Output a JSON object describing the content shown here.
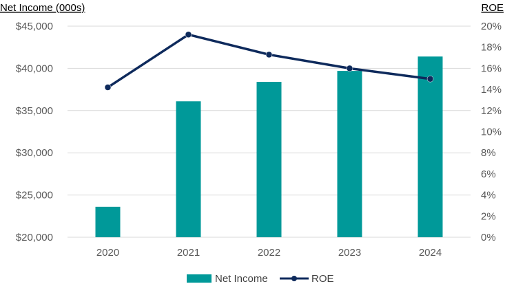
{
  "chart_data": {
    "type": "bar+line",
    "title": "",
    "categories": [
      "2020",
      "2021",
      "2022",
      "2023",
      "2024"
    ],
    "series": [
      {
        "name": "Net Income",
        "type": "bar",
        "axis": "left",
        "values": [
          23600,
          36100,
          38400,
          39700,
          41400
        ]
      },
      {
        "name": "ROE",
        "type": "line",
        "axis": "right",
        "values": [
          0.142,
          0.192,
          0.173,
          0.16,
          0.15
        ]
      }
    ],
    "ylabel_left": "Net Income (000s)",
    "ylabel_right": "ROE",
    "ylim_left": [
      20000,
      45000
    ],
    "ylim_right": [
      0,
      0.2
    ],
    "yticks_left": [
      "$20,000",
      "$25,000",
      "$30,000",
      "$35,000",
      "$40,000",
      "$45,000"
    ],
    "yticks_right": [
      "0%",
      "2%",
      "4%",
      "6%",
      "8%",
      "10%",
      "12%",
      "14%",
      "16%",
      "18%",
      "20%"
    ],
    "grid": true,
    "legend_position": "bottom",
    "colors": {
      "bar": "#009999",
      "line": "#0E2A5C",
      "grid": "#D9D9D9",
      "tick_text": "#595959"
    }
  }
}
